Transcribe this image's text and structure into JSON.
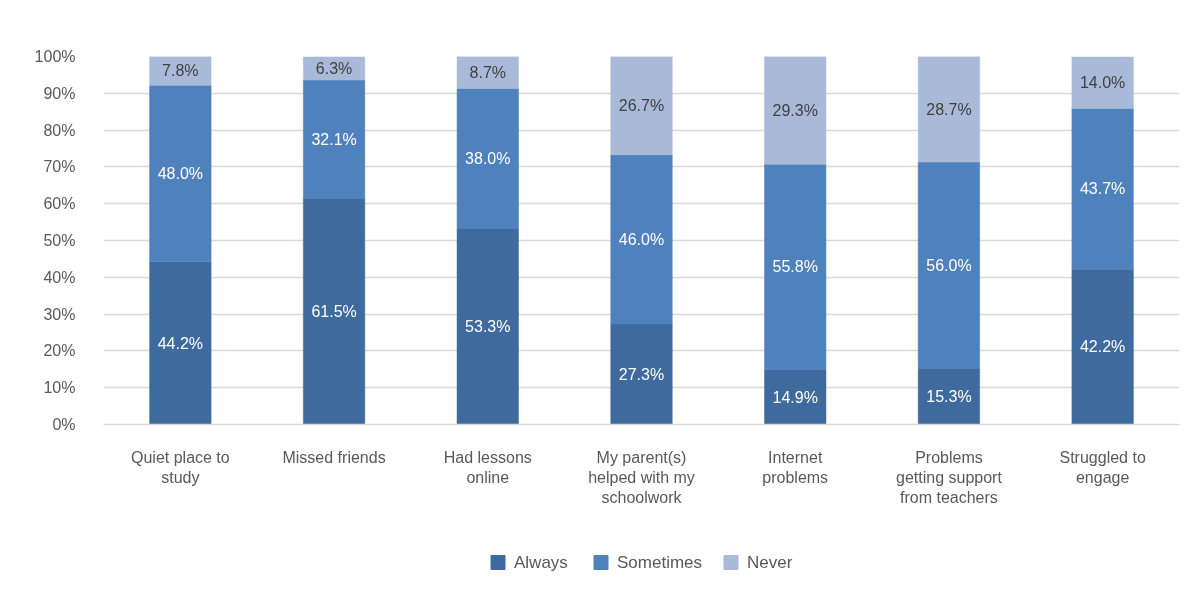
{
  "chart_data": {
    "type": "bar",
    "stacked": true,
    "categories": [
      "Quiet place to study",
      "Missed friends",
      "Had lessons online",
      "My parent(s) helped with my schoolwork",
      "Internet problems",
      "Problems getting support from teachers",
      "Struggled to engage"
    ],
    "series": [
      {
        "name": "Always",
        "color": "#3e6a9e",
        "values": [
          44.2,
          61.5,
          53.3,
          27.3,
          14.9,
          15.3,
          42.2
        ],
        "value_labels": [
          "44.2%",
          "61.5%",
          "53.3%",
          "27.3%",
          "14.9%",
          "15.3%",
          "42.2%"
        ]
      },
      {
        "name": "Sometimes",
        "color": "#4f81bd",
        "values": [
          48.0,
          32.1,
          38.0,
          46.0,
          55.8,
          56.0,
          43.7
        ],
        "value_labels": [
          "48.0%",
          "32.1%",
          "38.0%",
          "46.0%",
          "55.8%",
          "56.0%",
          "43.7%"
        ]
      },
      {
        "name": "Never",
        "color": "#a9bad9",
        "values": [
          7.8,
          6.3,
          8.7,
          26.7,
          29.3,
          28.7,
          14.0
        ],
        "value_labels": [
          "7.8%",
          "6.3%",
          "8.7%",
          "26.7%",
          "29.3%",
          "28.7%",
          "14.0%"
        ]
      }
    ],
    "ylim": [
      0,
      100
    ],
    "yticks": [
      {
        "value": 0,
        "label": "0%"
      },
      {
        "value": 10,
        "label": "10%"
      },
      {
        "value": 20,
        "label": "20%"
      },
      {
        "value": 30,
        "label": "30%"
      },
      {
        "value": 40,
        "label": "40%"
      },
      {
        "value": 50,
        "label": "50%"
      },
      {
        "value": 60,
        "label": "60%"
      },
      {
        "value": 70,
        "label": "70%"
      },
      {
        "value": 80,
        "label": "80%"
      },
      {
        "value": 90,
        "label": "90%"
      },
      {
        "value": 100,
        "label": "100%"
      }
    ],
    "grid": "y",
    "legend": "bottom"
  }
}
